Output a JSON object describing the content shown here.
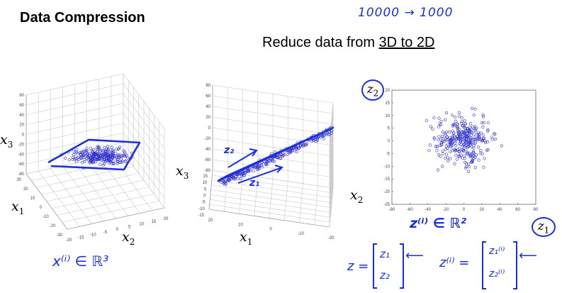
{
  "slide": {
    "title": "Data Compression",
    "subtitle_prefix": "Reduce data from ",
    "subtitle_underlined": "3D to 2D",
    "handwritten_note": "10000 → 1000"
  },
  "plot_3d_left": {
    "axis_labels": {
      "x1": "x",
      "x1_sub": "1",
      "x2": "x",
      "x2_sub": "2",
      "x3": "x",
      "x3_sub": "3"
    },
    "z_ticks": [
      "80",
      "60",
      "40",
      "20",
      "0",
      "-20",
      "-40",
      "-60",
      "-80"
    ],
    "x1_ticks": [
      "30",
      "20",
      "10",
      "0",
      "-10",
      "-20",
      "-30"
    ],
    "x2_ticks": [
      "-20",
      "-15",
      "-10",
      "-5",
      "0",
      "5",
      "10",
      "15",
      "20"
    ],
    "annotation": "x⁽ⁱ⁾ ∈ ℝ³"
  },
  "plot_3d_middle": {
    "axis_labels": {
      "x1": "x",
      "x1_sub": "1",
      "x2": "x",
      "x2_sub": "2",
      "x3": "x",
      "x3_sub": "3"
    },
    "z_ticks": [
      "80",
      "60",
      "40",
      "20",
      "0",
      "-20",
      "-40",
      "-60",
      "-80"
    ],
    "x1_ticks": [
      "15",
      "10",
      "5",
      "0",
      "-5",
      "-10",
      "-15"
    ],
    "x2_ticks": [
      "20",
      "10",
      "0",
      "-10",
      "-20"
    ],
    "annotation_z1": "z₁",
    "annotation_z2": "z₂"
  },
  "plot_2d": {
    "xlabel": "z",
    "xlabel_sub": "1",
    "ylabel": "z",
    "ylabel_sub": "2",
    "xlim": [
      -80,
      80
    ],
    "ylim": [
      -25,
      20
    ],
    "x_ticks": [
      "-80",
      "-60",
      "-40",
      "-20",
      "0",
      "20",
      "40",
      "60",
      "80"
    ],
    "y_ticks": [
      "20",
      "15",
      "10",
      "5",
      "0",
      "-5",
      "-10",
      "-15",
      "-20",
      "-25"
    ],
    "annotation": "z⁽ⁱ⁾ ∈ ℝ²",
    "point_color": "#3333cc"
  },
  "equations": {
    "z_lhs": "z =",
    "z_top": "z₁",
    "z_bottom": "z₂",
    "zi_lhs": "z⁽ⁱ⁾ =",
    "zi_top": "z₁⁽ⁱ⁾",
    "zi_bottom": "z₂⁽ⁱ⁾"
  },
  "colors": {
    "ink": "#1a2fe0",
    "points": "#3333cc",
    "grid": "#c8c8c8"
  }
}
